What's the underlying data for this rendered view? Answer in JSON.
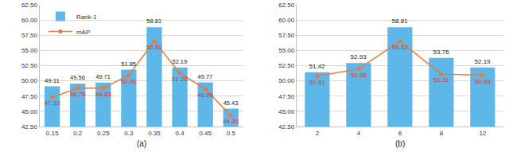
{
  "chart_data": [
    {
      "type": "bar",
      "title": "(a)",
      "categories": [
        "0.15",
        "0.2",
        "0.25",
        "0.3",
        "0.35",
        "0.4",
        "0.45",
        "0.5"
      ],
      "series": [
        {
          "name": "Rank-1",
          "type": "bar",
          "color": "#5db7e8",
          "values": [
            49.11,
            49.56,
            49.71,
            51.85,
            58.81,
            52.19,
            49.77,
            45.43
          ]
        },
        {
          "name": "mAP",
          "type": "line",
          "color": "#f0773a",
          "marker": "circle",
          "line_style": "solid",
          "values": [
            47.32,
            48.76,
            48.83,
            50.91,
            56.52,
            51.26,
            48.66,
            44.31
          ]
        }
      ],
      "ylim": [
        42.5,
        62.5
      ],
      "yticks": [
        {
          "value": 42.5,
          "label": "42.50"
        },
        {
          "value": 45,
          "label": "45.00"
        },
        {
          "value": 47.5,
          "label": "47.50"
        },
        {
          "value": 50,
          "label": "50.00"
        },
        {
          "value": 52.5,
          "label": "52.50"
        },
        {
          "value": 55,
          "label": "55.00"
        },
        {
          "value": 57.5,
          "label": "57.50"
        },
        {
          "value": 60,
          "label": "60.00"
        },
        {
          "value": 62.5,
          "label": "62.50"
        }
      ],
      "grid": true,
      "data_labels": true,
      "legend": "upper left"
    },
    {
      "type": "bar",
      "title": "(b)",
      "categories": [
        "2",
        "4",
        "6",
        "8",
        "12"
      ],
      "series": [
        {
          "name": "Rank-1",
          "type": "bar",
          "color": "#5db7e8",
          "values": [
            51.42,
            52.93,
            58.81,
            53.76,
            52.19
          ]
        },
        {
          "name": "mAP",
          "type": "line",
          "color": "#f0773a",
          "marker": "circle",
          "line_style": "solid",
          "values": [
            50.81,
            51.96,
            56.52,
            51.11,
            50.93
          ]
        }
      ],
      "ylim": [
        42.5,
        62.5
      ],
      "yticks": [
        {
          "value": 42.5,
          "label": "42.50"
        },
        {
          "value": 45,
          "label": "45.00"
        },
        {
          "value": 47.5,
          "label": "47.50"
        },
        {
          "value": 50,
          "label": "50.00"
        },
        {
          "value": 52.5,
          "label": "52.50"
        },
        {
          "value": 55,
          "label": "55.00"
        },
        {
          "value": 57.5,
          "label": "57.50"
        },
        {
          "value": 60,
          "label": "60.00"
        },
        {
          "value": 62.5,
          "label": "62.50"
        }
      ],
      "grid": true,
      "data_labels": true
    }
  ]
}
